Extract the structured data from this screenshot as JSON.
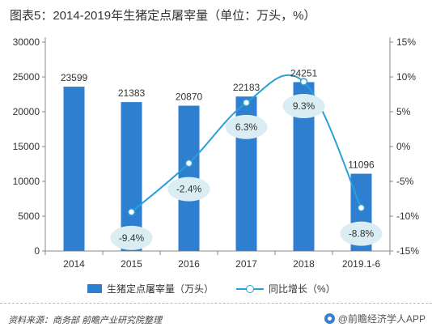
{
  "title": "图表5：2014-2019年生猪定点屠宰量（单位：万头，%）",
  "colors": {
    "bar": "#2f7fd1",
    "line": "#28a0d8",
    "bubble": "#d9edf2",
    "axis": "#888888",
    "text": "#333333"
  },
  "chart_data": {
    "type": "bar",
    "categories": [
      "2014",
      "2015",
      "2016",
      "2017",
      "2018",
      "2019.1-6"
    ],
    "series": [
      {
        "name": "生猪定点屠宰量（万头）",
        "type": "bar",
        "axis": "left",
        "values": [
          23599,
          21383,
          20870,
          22183,
          24251,
          11096
        ]
      },
      {
        "name": "同比增长（%）",
        "type": "line",
        "axis": "right",
        "values": [
          null,
          -9.4,
          -2.4,
          6.3,
          9.3,
          -8.8
        ]
      }
    ],
    "bar_labels": [
      "23599",
      "21383",
      "20870",
      "22183",
      "24251",
      "11096"
    ],
    "line_labels": [
      "",
      "-9.4%",
      "-2.4%",
      "6.3%",
      "9.3%",
      "-8.8%"
    ],
    "y_left": {
      "min": 0,
      "max": 30000,
      "ticks": [
        "0",
        "5000",
        "10000",
        "15000",
        "20000",
        "25000",
        "30000"
      ]
    },
    "y_right": {
      "min": -15,
      "max": 15,
      "ticks": [
        "-15%",
        "-10%",
        "-5%",
        "0%",
        "5%",
        "10%",
        "15%"
      ]
    },
    "legend_position": "bottom",
    "grid": false
  },
  "legend": {
    "bar_label": "生猪定点屠宰量（万头）",
    "line_label": "同比增长（%）"
  },
  "footer": {
    "source": "资料来源：商务部 前瞻产业研究院整理",
    "brand": "@前瞻经济学人APP"
  }
}
